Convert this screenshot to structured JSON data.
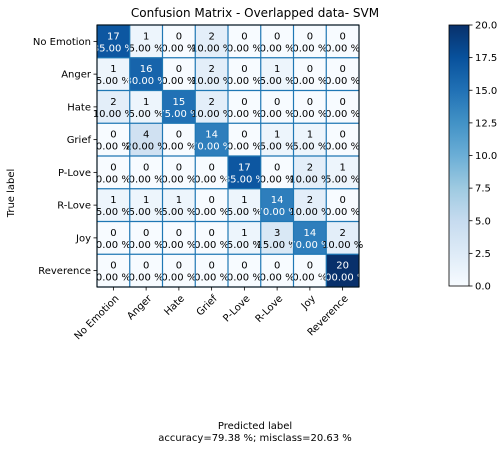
{
  "chart_data": {
    "type": "heatmap",
    "title": "Confusion Matrix - Overlapped data- SVM",
    "xlabel": "Predicted label",
    "xlabel_sub": "accuracy=79.38 %; misclass=20.63 %",
    "ylabel": "True label",
    "x_categories": [
      "No Emotion",
      "Anger",
      "Hate",
      "Grief",
      "P-Love",
      "R-Love",
      "Joy",
      "Reverence"
    ],
    "y_categories": [
      "No Emotion",
      "Anger",
      "Hate",
      "Grief",
      "P-Love",
      "R-Love",
      "Joy",
      "Reverence"
    ],
    "counts": [
      [
        17,
        1,
        0,
        2,
        0,
        0,
        0,
        0
      ],
      [
        1,
        16,
        0,
        2,
        0,
        1,
        0,
        0
      ],
      [
        2,
        1,
        15,
        2,
        0,
        0,
        0,
        0
      ],
      [
        0,
        4,
        0,
        14,
        0,
        1,
        1,
        0
      ],
      [
        0,
        0,
        0,
        0,
        17,
        0,
        2,
        1
      ],
      [
        1,
        1,
        1,
        0,
        1,
        14,
        2,
        0
      ],
      [
        0,
        0,
        0,
        0,
        1,
        3,
        14,
        2
      ],
      [
        0,
        0,
        0,
        0,
        0,
        0,
        0,
        20
      ]
    ],
    "percents": [
      [
        "85.00 %",
        "5.00 %",
        "0.00 %",
        "10.00 %",
        "0.00 %",
        "0.00 %",
        "0.00 %",
        "0.00 %"
      ],
      [
        "5.00 %",
        "80.00 %",
        "0.00 %",
        "10.00 %",
        "0.00 %",
        "5.00 %",
        "0.00 %",
        "0.00 %"
      ],
      [
        "10.00 %",
        "5.00 %",
        "75.00 %",
        "10.00 %",
        "0.00 %",
        "0.00 %",
        "0.00 %",
        "0.00 %"
      ],
      [
        "0.00 %",
        "20.00 %",
        "0.00 %",
        "70.00 %",
        "0.00 %",
        "5.00 %",
        "5.00 %",
        "0.00 %"
      ],
      [
        "0.00 %",
        "0.00 %",
        "0.00 %",
        "0.00 %",
        "85.00 %",
        "0.00 %",
        "10.00 %",
        "5.00 %"
      ],
      [
        "5.00 %",
        "5.00 %",
        "5.00 %",
        "0.00 %",
        "5.00 %",
        "70.00 %",
        "10.00 %",
        "0.00 %"
      ],
      [
        "0.00 %",
        "0.00 %",
        "0.00 %",
        "0.00 %",
        "5.00 %",
        "15.00 %",
        "70.00 %",
        "10.00 %"
      ],
      [
        "0.00 %",
        "0.00 %",
        "0.00 %",
        "0.00 %",
        "0.00 %",
        "0.00 %",
        "0.00 %",
        "100.00 %"
      ]
    ],
    "colorbar": {
      "min": 0,
      "max": 20,
      "ticks": [
        "0.0",
        "2.5",
        "5.0",
        "7.5",
        "10.0",
        "12.5",
        "15.0",
        "17.5",
        "20.0"
      ],
      "tick_values": [
        0,
        2.5,
        5,
        7.5,
        10,
        12.5,
        15,
        17.5,
        20
      ]
    },
    "colormap": "Blues",
    "grid_color": "#1f77b4",
    "grid": true
  }
}
